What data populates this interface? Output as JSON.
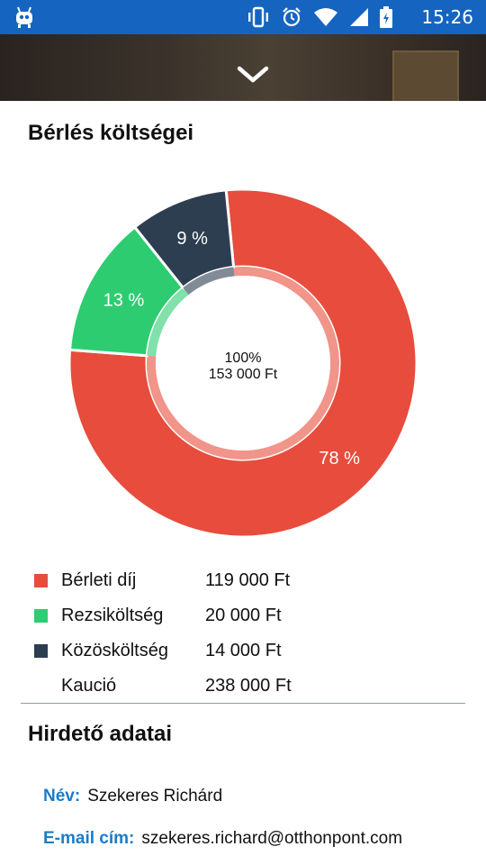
{
  "status_bar": {
    "time": "15:26",
    "icons": [
      "android-bot-icon",
      "vibrate-icon",
      "alarm-icon",
      "wifi-icon",
      "signal-icon",
      "battery-charging-icon"
    ]
  },
  "hero": {
    "toggle_icon": "chevron-down-icon"
  },
  "costs": {
    "title": "Bérlés költségei",
    "center_percent": "100%",
    "center_total": "153 000 Ft",
    "legend": [
      {
        "label": "Bérleti díj",
        "value": "119 000 Ft",
        "color": "#e74c3c"
      },
      {
        "label": "Rezsiköltség",
        "value": "20 000 Ft",
        "color": "#2ecc71"
      },
      {
        "label": "Közösköltség",
        "value": "14 000 Ft",
        "color": "#2c3e50"
      },
      {
        "label": "Kaució",
        "value": "238 000 Ft"
      }
    ]
  },
  "chart_data": {
    "type": "pie",
    "categories": [
      "Bérleti díj",
      "Rezsiköltség",
      "Közösköltség"
    ],
    "values": [
      119000,
      20000,
      14000
    ],
    "slice_labels": [
      "78 %",
      "13 %",
      "9 %"
    ],
    "colors": [
      "#e74c3c",
      "#2ecc71",
      "#2c3e50"
    ],
    "style": "donut"
  },
  "advertiser": {
    "title": "Hirdető adatai",
    "name_label": "Név:",
    "name_value": "Szekeres Richárd",
    "email_label": "E-mail cím:",
    "email_value": "szekeres.richard@otthonpont.com"
  }
}
